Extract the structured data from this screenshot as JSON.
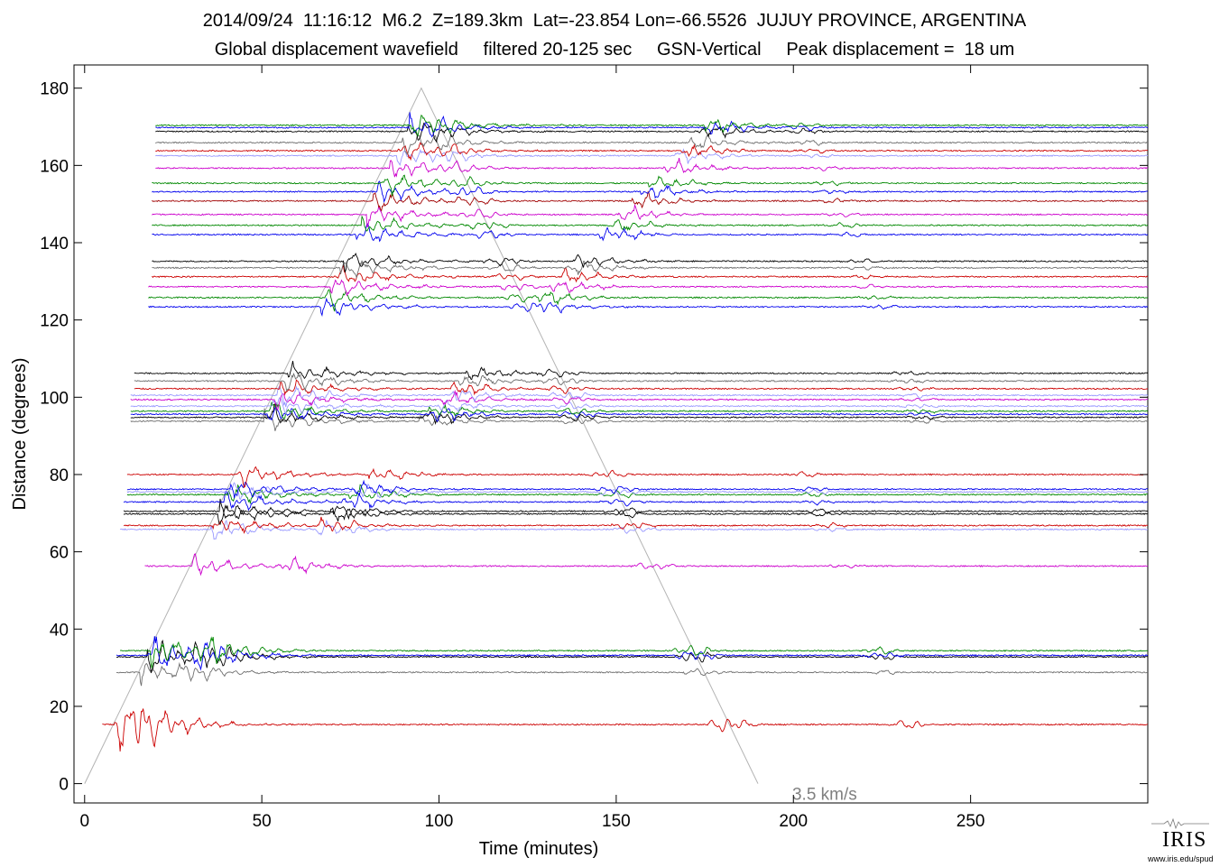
{
  "header": {
    "title_line1": "2014/09/24  11:16:12  M6.2  Z=189.3km  Lat=-23.854 Lon=-66.5526  JUJUY PROVINCE, ARGENTINA",
    "title_line2": "Global displacement wavefield     filtered 20-125 sec     GSN-Vertical     Peak displacement =  18 um"
  },
  "chart_data": {
    "type": "line",
    "title": "2014/09/24  11:16:12  M6.2  Z=189.3km  Lat=-23.854 Lon=-66.5526  JUJUY PROVINCE, ARGENTINA",
    "subtitle": "Global displacement wavefield     filtered 20-125 sec     GSN-Vertical     Peak displacement =  18 um",
    "xlabel": "Time (minutes)",
    "ylabel": "Distance (degrees)",
    "xlim": [
      -3,
      300
    ],
    "ylim": [
      -5,
      186
    ],
    "xticks": [
      0,
      50,
      100,
      150,
      200,
      250
    ],
    "yticks": [
      0,
      20,
      40,
      60,
      80,
      100,
      120,
      140,
      160,
      180
    ],
    "grid": false,
    "colors": [
      "#000000",
      "#cc0000",
      "#6e6e6e",
      "#cc00cc",
      "#0000ee",
      "#008800",
      "#9999ff",
      "#a00000"
    ],
    "reference_line": {
      "label": "3.5 km/s",
      "points": [
        [
          0,
          0
        ],
        [
          95,
          180
        ],
        [
          190,
          0
        ]
      ]
    },
    "traces": [
      {
        "distance": 15.3,
        "color": "#cc0000",
        "onset": 5
      },
      {
        "distance": 28.8,
        "color": "#6e6e6e",
        "onset": 9
      },
      {
        "distance": 32.8,
        "color": "#000000",
        "onset": 9
      },
      {
        "distance": 33.2,
        "color": "#0000ee",
        "onset": 9
      },
      {
        "distance": 34.4,
        "color": "#008800",
        "onset": 10
      },
      {
        "distance": 56.3,
        "color": "#cc00cc",
        "onset": 17
      },
      {
        "distance": 65.8,
        "color": "#9999ff",
        "onset": 10
      },
      {
        "distance": 66.8,
        "color": "#cc0000",
        "onset": 11
      },
      {
        "distance": 69.8,
        "color": "#000000",
        "onset": 11
      },
      {
        "distance": 70.5,
        "color": "#000000",
        "onset": 11
      },
      {
        "distance": 72.9,
        "color": "#0000ee",
        "onset": 11
      },
      {
        "distance": 74.8,
        "color": "#008800",
        "onset": 12
      },
      {
        "distance": 75.5,
        "color": "#9999ff",
        "onset": 12
      },
      {
        "distance": 76.2,
        "color": "#0000ee",
        "onset": 12
      },
      {
        "distance": 80.0,
        "color": "#cc0000",
        "onset": 12
      },
      {
        "distance": 93.8,
        "color": "#6e6e6e",
        "onset": 13
      },
      {
        "distance": 94.8,
        "color": "#000000",
        "onset": 13
      },
      {
        "distance": 95.6,
        "color": "#0000ee",
        "onset": 13
      },
      {
        "distance": 96.4,
        "color": "#008800",
        "onset": 13
      },
      {
        "distance": 97.7,
        "color": "#9999ff",
        "onset": 13
      },
      {
        "distance": 99.4,
        "color": "#cc00cc",
        "onset": 13
      },
      {
        "distance": 100.5,
        "color": "#9999ff",
        "onset": 13
      },
      {
        "distance": 102.2,
        "color": "#cc0000",
        "onset": 14
      },
      {
        "distance": 104.2,
        "color": "#6e6e6e",
        "onset": 14
      },
      {
        "distance": 106.2,
        "color": "#000000",
        "onset": 14
      },
      {
        "distance": 123.4,
        "color": "#0000ee",
        "onset": 18
      },
      {
        "distance": 125.8,
        "color": "#008800",
        "onset": 18
      },
      {
        "distance": 128.6,
        "color": "#cc00cc",
        "onset": 18
      },
      {
        "distance": 131.2,
        "color": "#cc0000",
        "onset": 19
      },
      {
        "distance": 133.5,
        "color": "#6e6e6e",
        "onset": 19
      },
      {
        "distance": 135.2,
        "color": "#000000",
        "onset": 19
      },
      {
        "distance": 142.1,
        "color": "#0000ee",
        "onset": 19
      },
      {
        "distance": 144.5,
        "color": "#008800",
        "onset": 19
      },
      {
        "distance": 147.3,
        "color": "#cc00cc",
        "onset": 19
      },
      {
        "distance": 150.8,
        "color": "#a00000",
        "onset": 19
      },
      {
        "distance": 153.2,
        "color": "#0000ee",
        "onset": 19
      },
      {
        "distance": 155.4,
        "color": "#008800",
        "onset": 19
      },
      {
        "distance": 159.3,
        "color": "#cc00cc",
        "onset": 20
      },
      {
        "distance": 162.5,
        "color": "#9999ff",
        "onset": 20
      },
      {
        "distance": 163.8,
        "color": "#cc0000",
        "onset": 20
      },
      {
        "distance": 165.9,
        "color": "#6e6e6e",
        "onset": 20
      },
      {
        "distance": 168.8,
        "color": "#000000",
        "onset": 20
      },
      {
        "distance": 169.8,
        "color": "#0000ee",
        "onset": 20
      },
      {
        "distance": 170.4,
        "color": "#008800",
        "onset": 20
      }
    ]
  },
  "logo": {
    "name": "IRIS",
    "url_text": "www.iris.edu/spud",
    "icon": "seismogram-icon"
  }
}
